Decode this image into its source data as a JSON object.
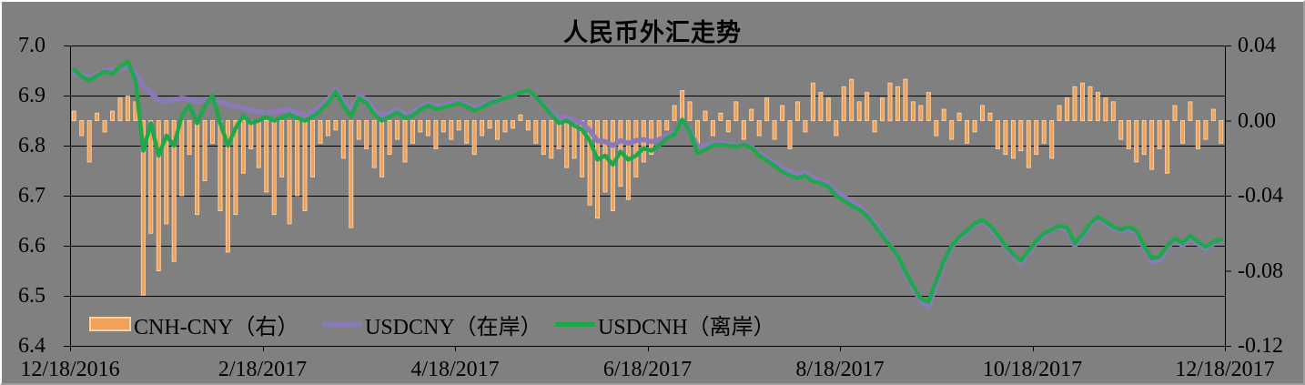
{
  "colors": {
    "background": "#808080",
    "gridline": "#000000",
    "bar_fill": "#F1A159",
    "bar_border": "#FAD0A0",
    "usdcny_line": "#8B7ABA",
    "usdcnh_line": "#1FA84B",
    "text": "#000000"
  },
  "chart_data": {
    "type": "combo",
    "title": "人民币外汇走势",
    "x_start": "12/18/2016",
    "x_end": "12/18/2017",
    "x_tick_labels": [
      "12/18/2016",
      "2/18/2017",
      "4/18/2017",
      "6/18/2017",
      "8/18/2017",
      "10/18/2017",
      "12/18/2017"
    ],
    "left_axis": {
      "min": 6.4,
      "max": 7.0,
      "tick_values": [
        7.0,
        6.9,
        6.8,
        6.7,
        6.6,
        6.5,
        6.4
      ],
      "tick_labels": [
        "7.0",
        "6.9",
        "6.8",
        "6.7",
        "6.6",
        "6.5",
        "6.4"
      ]
    },
    "right_axis": {
      "min": -0.12,
      "max": 0.04,
      "tick_values": [
        0.04,
        0.0,
        -0.04,
        -0.08,
        -0.12
      ],
      "tick_labels": [
        "0.04",
        "0.00",
        "-0.04",
        "-0.08",
        "-0.12"
      ]
    },
    "grid": "horizontal",
    "legend_position": "bottom-left-inside",
    "n_points": 150,
    "series": [
      {
        "name": "CNH-CNY（右）",
        "type": "bar",
        "axis": "right",
        "values": [
          0.005,
          -0.008,
          -0.022,
          0.004,
          -0.006,
          0.005,
          0.012,
          0.013,
          0.01,
          -0.093,
          -0.06,
          -0.08,
          -0.055,
          -0.075,
          -0.04,
          -0.018,
          -0.05,
          -0.032,
          -0.012,
          -0.048,
          -0.07,
          -0.05,
          -0.028,
          -0.015,
          -0.025,
          -0.038,
          -0.05,
          -0.03,
          -0.055,
          -0.04,
          -0.048,
          -0.03,
          -0.012,
          -0.008,
          -0.005,
          -0.02,
          -0.057,
          -0.01,
          -0.015,
          -0.025,
          -0.03,
          -0.018,
          -0.01,
          -0.022,
          -0.012,
          -0.006,
          -0.008,
          -0.015,
          -0.006,
          -0.01,
          -0.005,
          -0.012,
          -0.018,
          -0.008,
          -0.004,
          -0.01,
          -0.006,
          -0.004,
          0.003,
          -0.005,
          -0.012,
          -0.018,
          -0.02,
          -0.015,
          -0.025,
          -0.02,
          -0.03,
          -0.045,
          -0.052,
          -0.038,
          -0.048,
          -0.035,
          -0.042,
          -0.03,
          -0.022,
          -0.018,
          -0.01,
          -0.005,
          0.008,
          0.016,
          0.01,
          -0.012,
          0.005,
          -0.008,
          0.004,
          -0.006,
          0.01,
          -0.01,
          0.006,
          -0.008,
          0.012,
          -0.01,
          0.008,
          -0.015,
          0.01,
          -0.006,
          0.02,
          0.015,
          0.012,
          -0.008,
          0.018,
          0.022,
          0.01,
          0.015,
          -0.006,
          0.012,
          0.02,
          0.018,
          0.022,
          0.01,
          0.008,
          0.015,
          -0.008,
          0.006,
          -0.01,
          0.004,
          -0.012,
          -0.006,
          0.008,
          0.004,
          -0.015,
          -0.018,
          -0.02,
          -0.016,
          -0.025,
          -0.018,
          -0.012,
          -0.02,
          0.008,
          0.012,
          0.018,
          0.02,
          0.018,
          0.015,
          0.012,
          0.01,
          -0.01,
          -0.015,
          -0.022,
          -0.018,
          -0.026,
          -0.015,
          -0.028,
          0.008,
          -0.012,
          0.01,
          -0.015,
          -0.01,
          0.006,
          -0.012
        ]
      },
      {
        "name": "USDCNY（在岸）",
        "type": "line",
        "axis": "left",
        "values": [
          6.945,
          6.94,
          6.936,
          6.942,
          6.95,
          6.952,
          6.955,
          6.958,
          6.945,
          6.92,
          6.905,
          6.89,
          6.888,
          6.892,
          6.895,
          6.893,
          6.888,
          6.89,
          6.893,
          6.888,
          6.882,
          6.878,
          6.875,
          6.87,
          6.868,
          6.866,
          6.868,
          6.87,
          6.872,
          6.866,
          6.86,
          6.868,
          6.878,
          6.892,
          6.912,
          6.888,
          6.87,
          6.9,
          6.892,
          6.87,
          6.86,
          6.866,
          6.872,
          6.862,
          6.866,
          6.876,
          6.884,
          6.878,
          6.88,
          6.884,
          6.888,
          6.882,
          6.876,
          6.88,
          6.888,
          6.892,
          6.896,
          6.902,
          6.906,
          6.908,
          6.896,
          6.882,
          6.868,
          6.855,
          6.858,
          6.85,
          6.845,
          6.83,
          6.81,
          6.808,
          6.8,
          6.81,
          6.805,
          6.81,
          6.812,
          6.808,
          6.812,
          6.82,
          6.826,
          6.848,
          6.83,
          6.798,
          6.8,
          6.805,
          6.806,
          6.804,
          6.8,
          6.804,
          6.798,
          6.784,
          6.775,
          6.766,
          6.755,
          6.748,
          6.742,
          6.746,
          6.735,
          6.73,
          6.724,
          6.708,
          6.698,
          6.688,
          6.678,
          6.665,
          6.645,
          6.624,
          6.602,
          6.578,
          6.545,
          6.515,
          6.49,
          6.478,
          6.522,
          6.565,
          6.598,
          6.615,
          6.628,
          6.642,
          6.65,
          6.636,
          6.618,
          6.596,
          6.578,
          6.565,
          6.585,
          6.606,
          6.622,
          6.63,
          6.638,
          6.632,
          6.6,
          6.618,
          6.642,
          6.655,
          6.645,
          6.634,
          6.628,
          6.634,
          6.626,
          6.596,
          6.568,
          6.57,
          6.596,
          6.612,
          6.6,
          6.616,
          6.604,
          6.594,
          6.604,
          6.61
        ]
      },
      {
        "name": "USDCNH（离岸）",
        "type": "line",
        "axis": "left",
        "values": [
          6.952,
          6.938,
          6.93,
          6.94,
          6.948,
          6.944,
          6.958,
          6.968,
          6.93,
          6.79,
          6.845,
          6.78,
          6.82,
          6.8,
          6.86,
          6.88,
          6.845,
          6.88,
          6.9,
          6.845,
          6.8,
          6.835,
          6.86,
          6.845,
          6.85,
          6.858,
          6.85,
          6.856,
          6.862,
          6.855,
          6.85,
          6.858,
          6.87,
          6.885,
          6.908,
          6.88,
          6.858,
          6.895,
          6.885,
          6.862,
          6.85,
          6.858,
          6.866,
          6.855,
          6.86,
          6.872,
          6.88,
          6.873,
          6.876,
          6.88,
          6.885,
          6.878,
          6.87,
          6.876,
          6.885,
          6.89,
          6.895,
          6.9,
          6.906,
          6.91,
          6.898,
          6.88,
          6.862,
          6.845,
          6.85,
          6.84,
          6.832,
          6.81,
          6.772,
          6.78,
          6.762,
          6.788,
          6.772,
          6.78,
          6.795,
          6.79,
          6.8,
          6.815,
          6.822,
          6.852,
          6.828,
          6.785,
          6.792,
          6.8,
          6.802,
          6.8,
          6.798,
          6.802,
          6.796,
          6.78,
          6.77,
          6.76,
          6.748,
          6.74,
          6.735,
          6.74,
          6.728,
          6.725,
          6.718,
          6.7,
          6.69,
          6.68,
          6.672,
          6.66,
          6.64,
          6.62,
          6.6,
          6.58,
          6.548,
          6.52,
          6.495,
          6.488,
          6.53,
          6.57,
          6.6,
          6.618,
          6.63,
          6.645,
          6.652,
          6.64,
          6.622,
          6.6,
          6.582,
          6.57,
          6.59,
          6.61,
          6.625,
          6.632,
          6.64,
          6.636,
          6.605,
          6.622,
          6.645,
          6.658,
          6.648,
          6.638,
          6.632,
          6.638,
          6.63,
          6.6,
          6.575,
          6.578,
          6.6,
          6.615,
          6.605,
          6.62,
          6.608,
          6.598,
          6.608,
          6.612
        ]
      }
    ]
  }
}
